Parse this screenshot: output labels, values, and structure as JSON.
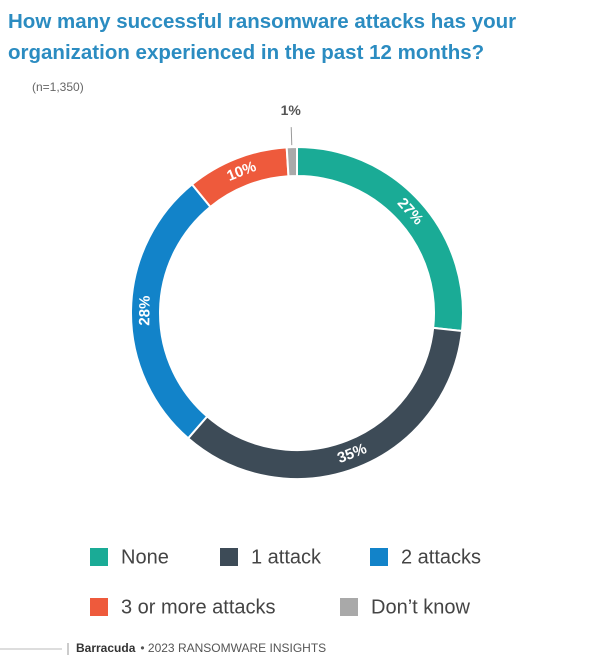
{
  "chart_data": {
    "type": "donut",
    "title": "How many successful ransomware attacks has your organization experienced in the past 12 months?",
    "subtitle": "(n=1,350)",
    "categories": [
      "None",
      "1 attack",
      "2 attacks",
      "3 or more attacks",
      "Don’t know"
    ],
    "values": [
      27,
      35,
      28,
      10,
      1
    ],
    "value_labels": [
      "27%",
      "35%",
      "28%",
      "10%",
      "1%"
    ],
    "colors": [
      "#1aab96",
      "#3d4b57",
      "#1283c9",
      "#ee5a3c",
      "#a9a9a9"
    ],
    "footer_brand": "Barracuda",
    "footer_text": "• 2023 RANSOMWARE INSIGHTS"
  }
}
